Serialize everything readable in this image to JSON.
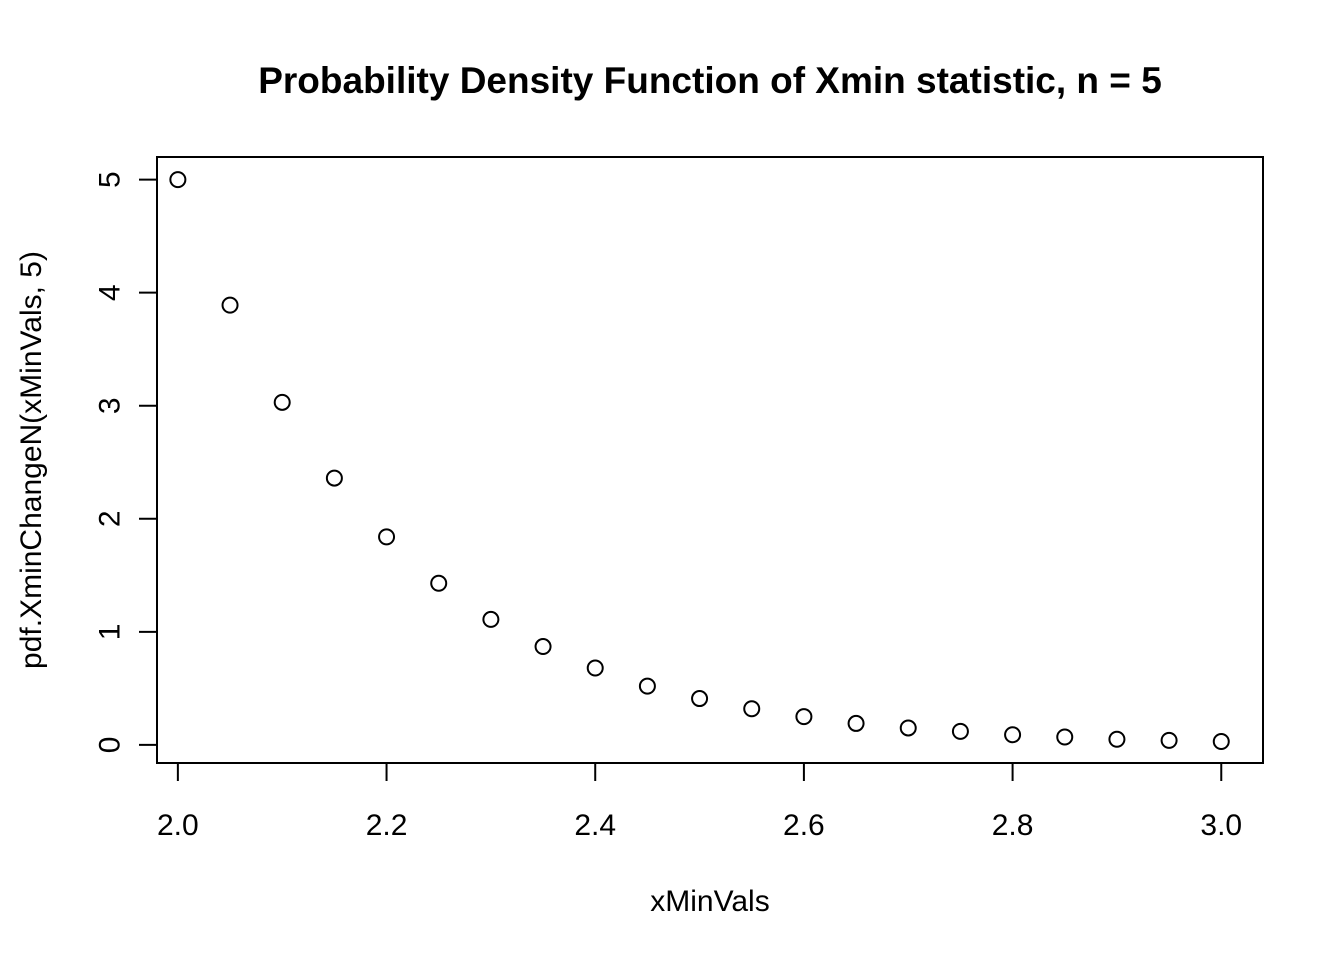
{
  "chart_data": {
    "type": "scatter",
    "title": "Probability Density Function of Xmin statistic, n = 5",
    "xlabel": "xMinVals",
    "ylabel": "pdf.XminChangeN(xMinVals, 5)",
    "xlim": [
      1.98,
      3.04
    ],
    "ylim": [
      -0.16,
      5.2
    ],
    "xticks": [
      2.0,
      2.2,
      2.4,
      2.6,
      2.8,
      3.0
    ],
    "xtick_labels": [
      "2.0",
      "2.2",
      "2.4",
      "2.6",
      "2.8",
      "3.0"
    ],
    "yticks": [
      0,
      1,
      2,
      3,
      4,
      5
    ],
    "ytick_labels": [
      "0",
      "1",
      "2",
      "3",
      "4",
      "5"
    ],
    "grid": false,
    "marker": "open-circle",
    "colors": {
      "marker": "#000000",
      "axis": "#000000",
      "background": "#ffffff"
    },
    "x": [
      2.0,
      2.05,
      2.1,
      2.15,
      2.2,
      2.25,
      2.3,
      2.35,
      2.4,
      2.45,
      2.5,
      2.55,
      2.6,
      2.65,
      2.7,
      2.75,
      2.8,
      2.85,
      2.9,
      2.95,
      3.0
    ],
    "y": [
      5.0,
      3.89,
      3.03,
      2.36,
      1.84,
      1.43,
      1.11,
      0.87,
      0.68,
      0.52,
      0.41,
      0.32,
      0.25,
      0.19,
      0.15,
      0.12,
      0.09,
      0.07,
      0.05,
      0.04,
      0.03
    ]
  }
}
